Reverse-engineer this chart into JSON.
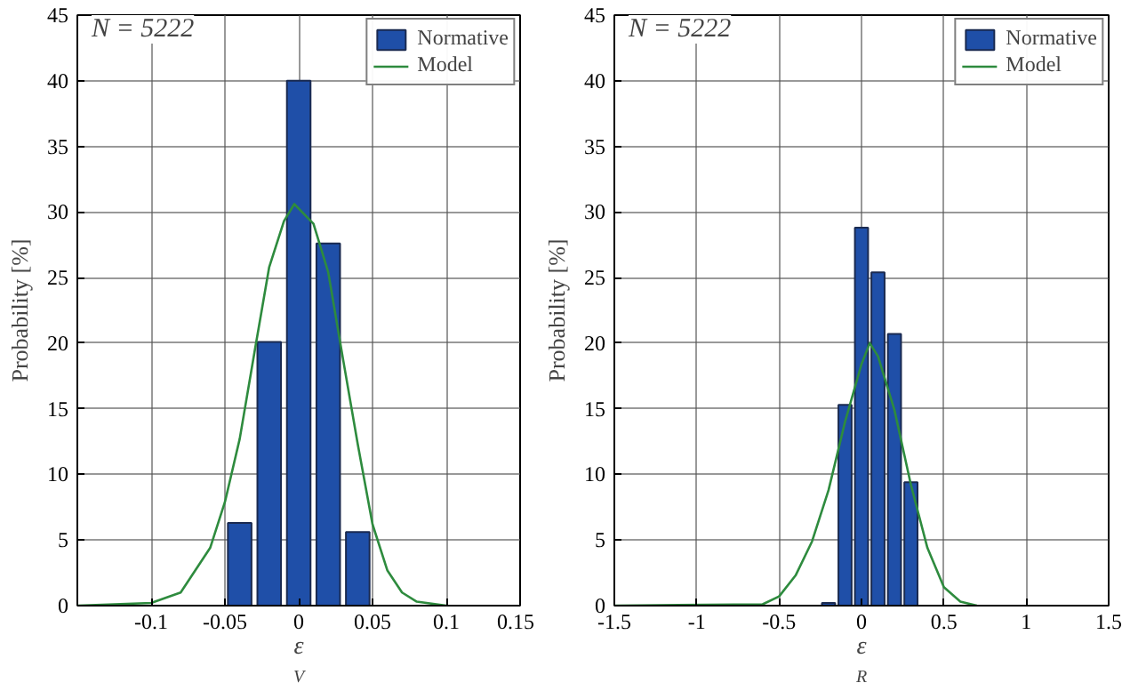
{
  "chart_data": [
    {
      "type": "bar",
      "xlabel": "ε$_{V}$",
      "ylabel": "Probability [%]",
      "annotations": [
        "N = 5222"
      ],
      "x": [
        -0.04,
        -0.02,
        0,
        0.02,
        0.04
      ],
      "series": [
        {
          "name": "Normative",
          "color": "#1f4fa8",
          "values": [
            6.3,
            20.1,
            40.0,
            27.6,
            5.6
          ]
        },
        {
          "name": "Model",
          "type": "line",
          "color": "#2e8b3e",
          "x": [
            -0.15,
            -0.1,
            -0.08,
            -0.06,
            -0.05,
            -0.04,
            -0.03,
            -0.02,
            -0.01,
            -0.003,
            0.01,
            0.02,
            0.03,
            0.04,
            0.05,
            0.06,
            0.07,
            0.08,
            0.1
          ],
          "values": [
            0,
            0.2,
            1.0,
            4.4,
            7.9,
            12.7,
            19.3,
            25.8,
            29.3,
            30.6,
            29.1,
            25.4,
            18.8,
            12.3,
            6.2,
            2.7,
            1.0,
            0.3,
            0
          ]
        }
      ],
      "xlim": [
        -0.15,
        0.15
      ],
      "xticks": [
        -0.1,
        -0.05,
        0,
        0.05,
        0.1,
        0.15
      ],
      "ylim": [
        0,
        45
      ],
      "yticks": [
        0,
        5,
        10,
        15,
        20,
        25,
        30,
        35,
        40,
        45
      ],
      "grid": true,
      "legend": "top right"
    },
    {
      "type": "bar",
      "xlabel": "ε$_{R}$",
      "ylabel": "Probability [%]",
      "annotations": [
        "N = 5222"
      ],
      "x": [
        -0.2,
        -0.1,
        0,
        0.1,
        0.2,
        0.3
      ],
      "series": [
        {
          "name": "Normative",
          "color": "#1f4fa8",
          "values": [
            0.2,
            15.3,
            28.8,
            25.4,
            20.7,
            9.4
          ]
        },
        {
          "name": "Model",
          "type": "line",
          "color": "#2e8b3e",
          "x": [
            -1.5,
            -0.6,
            -0.5,
            -0.4,
            -0.3,
            -0.2,
            -0.1,
            0,
            0.05,
            0.1,
            0.2,
            0.3,
            0.4,
            0.5,
            0.6,
            0.7
          ],
          "values": [
            0,
            0.1,
            0.7,
            2.3,
            4.9,
            8.8,
            14.0,
            18.4,
            20.0,
            19.0,
            14.9,
            9.2,
            4.4,
            1.4,
            0.3,
            0
          ]
        }
      ],
      "xlim": [
        -1.5,
        1.5
      ],
      "xticks": [
        -1.5,
        -1,
        -0.5,
        0,
        0.5,
        1,
        1.5
      ],
      "ylim": [
        0,
        45
      ],
      "yticks": [
        0,
        5,
        10,
        15,
        20,
        25,
        30,
        35,
        40,
        45
      ],
      "grid": true,
      "legend": "top right"
    }
  ]
}
